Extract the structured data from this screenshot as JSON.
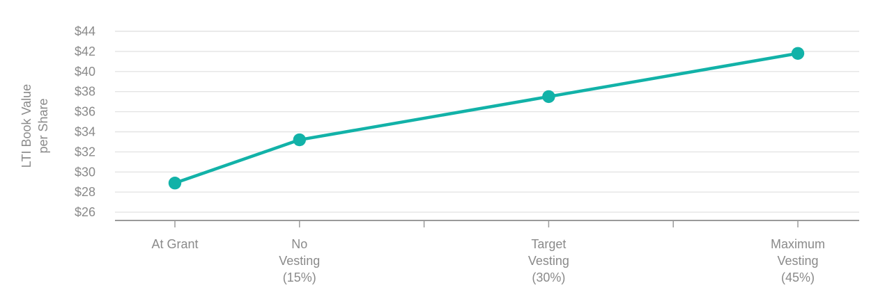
{
  "colors": {
    "series_teal": "#12b2a8",
    "grid_line": "#e4e4e4",
    "axis_line": "#9a9a9a",
    "label_gray": "#8a8a8a"
  },
  "chart_data": {
    "type": "line",
    "title": "",
    "legend": false,
    "grid": true,
    "y_axis": {
      "label_lines": [
        "LTI Book Value",
        "per Share"
      ],
      "tick_labels": [
        "$44",
        "$42",
        "$40",
        "$38",
        "$36",
        "$34",
        "$32",
        "$30",
        "$28",
        "$26"
      ],
      "tick_values": [
        44,
        42,
        40,
        38,
        36,
        34,
        32,
        30,
        28,
        26
      ],
      "unit_prefix": "$",
      "tick_step": 2,
      "range": [
        25.2,
        45.0
      ]
    },
    "x_axis": {
      "tick_count": 6,
      "labeled_tick_indices": [
        0,
        1,
        3,
        5
      ],
      "unlabeled_tick_indices": [
        2,
        4
      ],
      "categories": [
        {
          "tick_index": 0,
          "label_lines": [
            "At Grant"
          ]
        },
        {
          "tick_index": 1,
          "label_lines": [
            "No",
            "Vesting",
            "(15%)"
          ]
        },
        {
          "tick_index": 3,
          "label_lines": [
            "Target",
            "Vesting",
            "(30%)"
          ]
        },
        {
          "tick_index": 5,
          "label_lines": [
            "Maximum",
            "Vesting",
            "(45%)"
          ]
        }
      ]
    },
    "series": [
      {
        "name": "LTI Book Value per Share",
        "marker": "circle",
        "points": [
          {
            "category": "At Grant",
            "tick_index": 0,
            "value": 28.9
          },
          {
            "category": "No Vesting (15%)",
            "tick_index": 1,
            "value": 33.2
          },
          {
            "category": "Target Vesting (30%)",
            "tick_index": 3,
            "value": 37.5
          },
          {
            "category": "Maximum Vesting (45%)",
            "tick_index": 5,
            "value": 41.8
          }
        ]
      }
    ]
  }
}
